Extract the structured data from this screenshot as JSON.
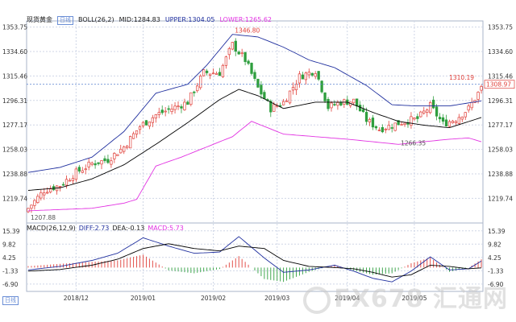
{
  "header": {
    "instrument": "现货黄金",
    "period_badge": "日线",
    "boll_label": "BOLL(26,2)",
    "mid": "MID:1284.83",
    "upper": "UPPER:1304.05",
    "lower": "LOWER:1265.62"
  },
  "macd_header": {
    "label": "MACD(26,12,9)",
    "diff": "DIFF:2.73",
    "dea": "DEA:-0.13",
    "macd": "MACD:5.73"
  },
  "period_button": "日线",
  "watermark": "FX678 汇通网",
  "colors": {
    "up": "#e0403a",
    "down": "#2e9e3e",
    "mid": "#000000",
    "upper": "#1f2f9e",
    "lower": "#e233e2",
    "diff": "#1f2f9e",
    "dea": "#000000",
    "grid": "#cfd6e6",
    "priceline": "#6c8fd6",
    "tag": "#e0403a"
  },
  "chart_data": {
    "type": "candlestick",
    "price_axis": {
      "ticks": [
        1353.75,
        1334.6,
        1315.46,
        1296.31,
        1277.17,
        1258.03,
        1238.88,
        1219.74
      ],
      "range": [
        1203.0,
        1356.0
      ]
    },
    "macd_axis": {
      "ticks": [
        15.39,
        9.82,
        4.25,
        -1.33,
        -6.9
      ],
      "range": [
        -10.0,
        16.0
      ]
    },
    "x_labels": [
      {
        "label": "2018/12",
        "index": 15
      },
      {
        "label": "2019/01",
        "index": 36
      },
      {
        "label": "2019/02",
        "index": 58
      },
      {
        "label": "2019/03",
        "index": 78
      },
      {
        "label": "2019/04",
        "index": 100
      },
      {
        "label": "2019/05",
        "index": 121
      }
    ],
    "annotations": [
      {
        "label": "1346.80",
        "index": 64,
        "value": 1346.8,
        "kind": "high"
      },
      {
        "label": "1266.35",
        "index": 116,
        "value": 1266.35,
        "kind": "low"
      },
      {
        "label": "1207.88",
        "index": 0,
        "value": 1207.88,
        "kind": "low"
      },
      {
        "label": "1310.19",
        "index": 141,
        "value": 1310.19,
        "kind": "high"
      }
    ],
    "current_price": {
      "label": "1308.97",
      "value": 1308.97
    },
    "anchors": {
      "close": [
        [
          0,
          1212
        ],
        [
          5,
          1226
        ],
        [
          10,
          1230
        ],
        [
          15,
          1240
        ],
        [
          20,
          1247
        ],
        [
          25,
          1250
        ],
        [
          30,
          1260
        ],
        [
          35,
          1276
        ],
        [
          40,
          1285
        ],
        [
          45,
          1290
        ],
        [
          50,
          1295
        ],
        [
          55,
          1318
        ],
        [
          60,
          1318
        ],
        [
          64,
          1340
        ],
        [
          68,
          1328
        ],
        [
          72,
          1306
        ],
        [
          76,
          1290
        ],
        [
          80,
          1295
        ],
        [
          85,
          1315
        ],
        [
          90,
          1320
        ],
        [
          94,
          1291
        ],
        [
          98,
          1295
        ],
        [
          102,
          1296
        ],
        [
          106,
          1281
        ],
        [
          110,
          1274
        ],
        [
          114,
          1277
        ],
        [
          118,
          1280
        ],
        [
          122,
          1282
        ],
        [
          126,
          1292
        ],
        [
          130,
          1278
        ],
        [
          134,
          1282
        ],
        [
          138,
          1290
        ],
        [
          142,
          1306
        ]
      ],
      "mid": [
        [
          0,
          1226
        ],
        [
          10,
          1228
        ],
        [
          20,
          1235
        ],
        [
          30,
          1246
        ],
        [
          40,
          1262
        ],
        [
          50,
          1279
        ],
        [
          60,
          1297
        ],
        [
          66,
          1305
        ],
        [
          72,
          1300
        ],
        [
          80,
          1290
        ],
        [
          90,
          1295
        ],
        [
          100,
          1295
        ],
        [
          108,
          1287
        ],
        [
          116,
          1280
        ],
        [
          124,
          1277
        ],
        [
          132,
          1275
        ],
        [
          142,
          1283
        ]
      ],
      "upper": [
        [
          0,
          1240
        ],
        [
          10,
          1244
        ],
        [
          20,
          1252
        ],
        [
          30,
          1272
        ],
        [
          40,
          1302
        ],
        [
          50,
          1309
        ],
        [
          56,
          1324
        ],
        [
          64,
          1348
        ],
        [
          72,
          1346
        ],
        [
          80,
          1338
        ],
        [
          88,
          1328
        ],
        [
          96,
          1322
        ],
        [
          106,
          1308
        ],
        [
          114,
          1293
        ],
        [
          122,
          1292
        ],
        [
          132,
          1292
        ],
        [
          142,
          1296
        ]
      ],
      "lower": [
        [
          0,
          1210
        ],
        [
          10,
          1211
        ],
        [
          20,
          1212
        ],
        [
          30,
          1216
        ],
        [
          34,
          1219
        ],
        [
          40,
          1245
        ],
        [
          48,
          1252
        ],
        [
          56,
          1260
        ],
        [
          64,
          1268
        ],
        [
          70,
          1280
        ],
        [
          80,
          1270
        ],
        [
          90,
          1268
        ],
        [
          100,
          1266
        ],
        [
          108,
          1264
        ],
        [
          116,
          1262
        ],
        [
          124,
          1264
        ],
        [
          132,
          1266
        ],
        [
          138,
          1267
        ],
        [
          142,
          1264
        ]
      ],
      "diff": [
        [
          0,
          -1.0
        ],
        [
          10,
          0.5
        ],
        [
          20,
          3.0
        ],
        [
          28,
          6.0
        ],
        [
          36,
          12.5
        ],
        [
          44,
          9.0
        ],
        [
          52,
          6.0
        ],
        [
          60,
          6.5
        ],
        [
          66,
          13.0
        ],
        [
          74,
          4.0
        ],
        [
          80,
          -2.0
        ],
        [
          88,
          -1.0
        ],
        [
          96,
          1.0
        ],
        [
          102,
          -1.5
        ],
        [
          108,
          -4.5
        ],
        [
          114,
          -6.0
        ],
        [
          120,
          -1.5
        ],
        [
          126,
          4.5
        ],
        [
          132,
          -1.0
        ],
        [
          138,
          -0.5
        ],
        [
          142,
          2.73
        ]
      ],
      "dea": [
        [
          0,
          -1.5
        ],
        [
          10,
          -0.8
        ],
        [
          20,
          1.0
        ],
        [
          28,
          3.5
        ],
        [
          36,
          8.0
        ],
        [
          44,
          10.0
        ],
        [
          52,
          8.0
        ],
        [
          60,
          7.0
        ],
        [
          66,
          9.0
        ],
        [
          74,
          8.0
        ],
        [
          80,
          3.0
        ],
        [
          88,
          0.5
        ],
        [
          96,
          0.0
        ],
        [
          102,
          -0.5
        ],
        [
          108,
          -2.0
        ],
        [
          114,
          -4.0
        ],
        [
          120,
          -3.0
        ],
        [
          126,
          1.0
        ],
        [
          132,
          0.5
        ],
        [
          138,
          -0.5
        ],
        [
          142,
          -0.13
        ]
      ]
    },
    "count": 143
  }
}
